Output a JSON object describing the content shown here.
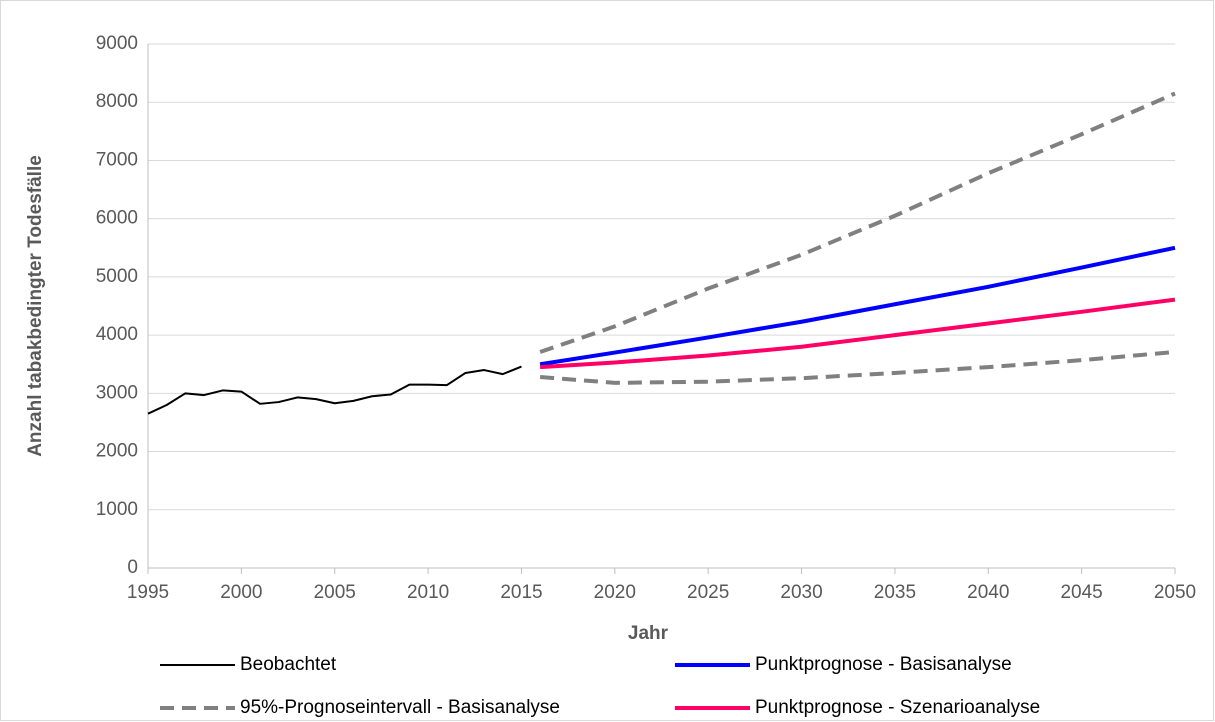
{
  "chart_data": {
    "type": "line",
    "x_label": "Jahr",
    "y_label": "Anzahl tabakbedingter Todesfälle",
    "xlim": [
      1995,
      2050
    ],
    "xticks": [
      1995,
      2000,
      2005,
      2010,
      2015,
      2020,
      2025,
      2030,
      2035,
      2040,
      2045,
      2050
    ],
    "ylim": [
      0,
      9000
    ],
    "yticks": [
      0,
      1000,
      2000,
      3000,
      4000,
      5000,
      6000,
      7000,
      8000,
      9000
    ],
    "grid": true,
    "legend": "bottom",
    "series": [
      {
        "name": "Beobachtet",
        "color": "#000000",
        "style": "solid",
        "x": [
          1995,
          1996,
          1997,
          1998,
          1999,
          2000,
          2001,
          2002,
          2003,
          2004,
          2005,
          2006,
          2007,
          2008,
          2009,
          2010,
          2011,
          2012,
          2013,
          2014,
          2015
        ],
        "values": [
          2650,
          2800,
          3000,
          2970,
          3050,
          3030,
          2820,
          2850,
          2930,
          2900,
          2830,
          2870,
          2950,
          2980,
          3150,
          3150,
          3140,
          3350,
          3400,
          3330,
          3460
        ]
      },
      {
        "name": "Punktprognose - Basisanalyse",
        "color": "#0000ff",
        "style": "solid",
        "x": [
          2016,
          2020,
          2025,
          2030,
          2035,
          2040,
          2045,
          2050
        ],
        "values": [
          3500,
          3700,
          3960,
          4230,
          4530,
          4830,
          5160,
          5500
        ]
      },
      {
        "name": "95%-Prognoseintervall - Basisanalyse",
        "color": "#808080",
        "style": "dashed",
        "x": [
          2016,
          2020,
          2025,
          2030,
          2035,
          2040,
          2045,
          2050
        ],
        "upper_values": [
          3710,
          4150,
          4800,
          5380,
          6050,
          6780,
          7450,
          8150
        ],
        "lower_values": [
          3280,
          3180,
          3200,
          3260,
          3350,
          3450,
          3570,
          3710
        ]
      },
      {
        "name": "Punktprognose - Szenarioanalyse",
        "color": "#ff0066",
        "style": "solid",
        "x": [
          2016,
          2020,
          2025,
          2030,
          2035,
          2040,
          2045,
          2050
        ],
        "values": [
          3450,
          3530,
          3650,
          3800,
          4000,
          4200,
          4400,
          4610
        ]
      }
    ]
  }
}
